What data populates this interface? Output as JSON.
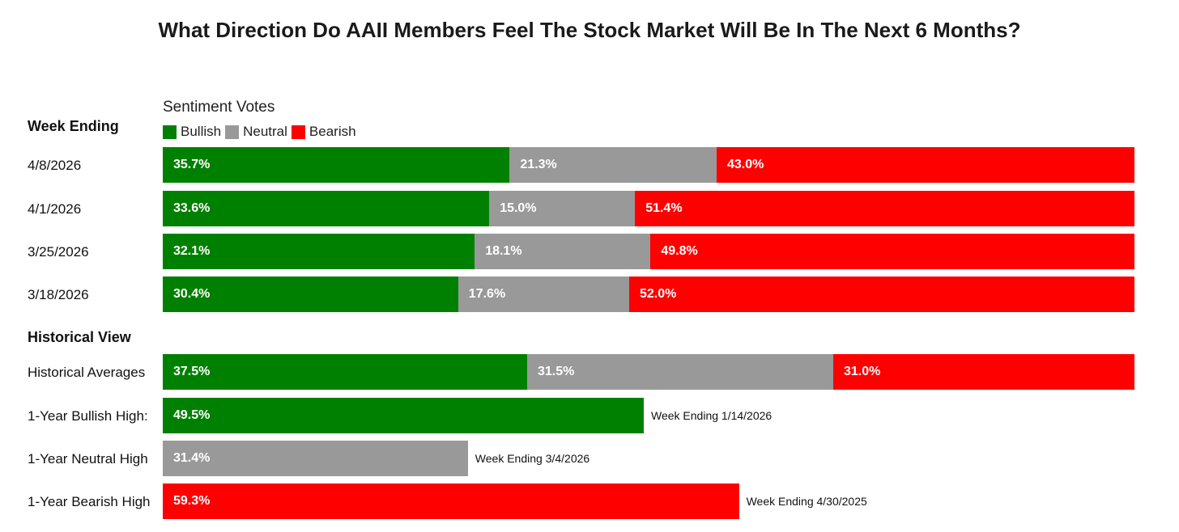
{
  "title": "What Direction Do AAII Members Feel The Stock Market Will Be In The Next 6 Months?",
  "legend": {
    "title": "Sentiment Votes",
    "items": [
      {
        "label": "Bullish",
        "color": "#008000"
      },
      {
        "label": "Neutral",
        "color": "#999999"
      },
      {
        "label": "Bearish",
        "color": "#ff0000"
      }
    ]
  },
  "sections": {
    "weekly": "Week Ending",
    "historical": "Historical View"
  },
  "chart_data": {
    "type": "bar",
    "orientation": "horizontal",
    "stacked": true,
    "series_names": [
      "Bullish",
      "Neutral",
      "Bearish"
    ],
    "colors": [
      "#008000",
      "#999999",
      "#ff0000"
    ],
    "xlim": [
      0,
      100
    ],
    "weekly_rows": [
      {
        "label": "4/8/2026",
        "values": [
          35.7,
          21.3,
          43.0
        ],
        "texts": [
          "35.7%",
          "21.3%",
          "43.0%"
        ]
      },
      {
        "label": "4/1/2026",
        "values": [
          33.6,
          15.0,
          51.4
        ],
        "texts": [
          "33.6%",
          "15.0%",
          "51.4%"
        ]
      },
      {
        "label": "3/25/2026",
        "values": [
          32.1,
          18.1,
          49.8
        ],
        "texts": [
          "32.1%",
          "18.1%",
          "49.8%"
        ]
      },
      {
        "label": "3/18/2026",
        "values": [
          30.4,
          17.6,
          52.0
        ],
        "texts": [
          "30.4%",
          "17.6%",
          "52.0%"
        ]
      }
    ],
    "historical_rows": [
      {
        "label": "Historical Averages",
        "values": [
          37.5,
          31.5,
          31.0
        ],
        "texts": [
          "37.5%",
          "31.5%",
          "31.0%"
        ]
      },
      {
        "label": "1-Year Bullish High:",
        "values": [
          49.5,
          0,
          0
        ],
        "texts": [
          "49.5%",
          "",
          ""
        ],
        "note": "Week Ending 1/14/2026"
      },
      {
        "label": "1-Year Neutral High",
        "values": [
          0,
          31.4,
          0
        ],
        "texts": [
          "",
          "31.4%",
          ""
        ],
        "note": "Week Ending 3/4/2026"
      },
      {
        "label": "1-Year Bearish High",
        "values": [
          0,
          0,
          59.3
        ],
        "texts": [
          "",
          "",
          "59.3%"
        ],
        "note": "Week Ending 4/30/2025"
      }
    ]
  }
}
